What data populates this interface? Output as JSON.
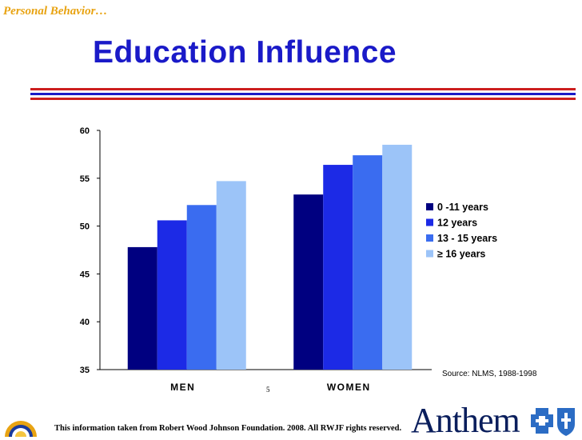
{
  "header": {
    "section_label": "Personal Behavior…",
    "title": "Education Influence"
  },
  "colors": {
    "title": "#1a1ac8",
    "rule_red": "#cc1f1f",
    "rule_blue": "#1a1ac8",
    "section_label": "#e8a312",
    "brand": "#0a1e5c"
  },
  "chart_data": {
    "type": "bar",
    "title": "",
    "xlabel": "",
    "ylabel": "",
    "categories": [
      "MEN",
      "WOMEN"
    ],
    "ylim": [
      35,
      60
    ],
    "yticks": [
      35,
      40,
      45,
      50,
      55,
      60
    ],
    "grid": false,
    "legend_position": "right",
    "series": [
      {
        "name": "0 -11 years",
        "color": "#000080",
        "values": [
          47.8,
          53.3
        ]
      },
      {
        "name": "12 years",
        "color": "#1c2ae6",
        "values": [
          50.6,
          56.4
        ]
      },
      {
        "name": "13 - 15 years",
        "color": "#3a6cf0",
        "values": [
          52.2,
          57.4
        ]
      },
      {
        "name": "≥ 16 years",
        "color": "#9cc4f8",
        "values": [
          54.7,
          58.5
        ]
      }
    ]
  },
  "source_note": "Source: NLMS, 1988-1998",
  "page_number": "5",
  "footer_text": "This information taken from Robert Wood Johnson Foundation. 2008. All RWJF rights reserved.",
  "brand": {
    "name": "Anthem",
    "left_logo_icon": "sunrise-logo-icon",
    "right_logo_icon": "cross-shield-logo-icon"
  }
}
